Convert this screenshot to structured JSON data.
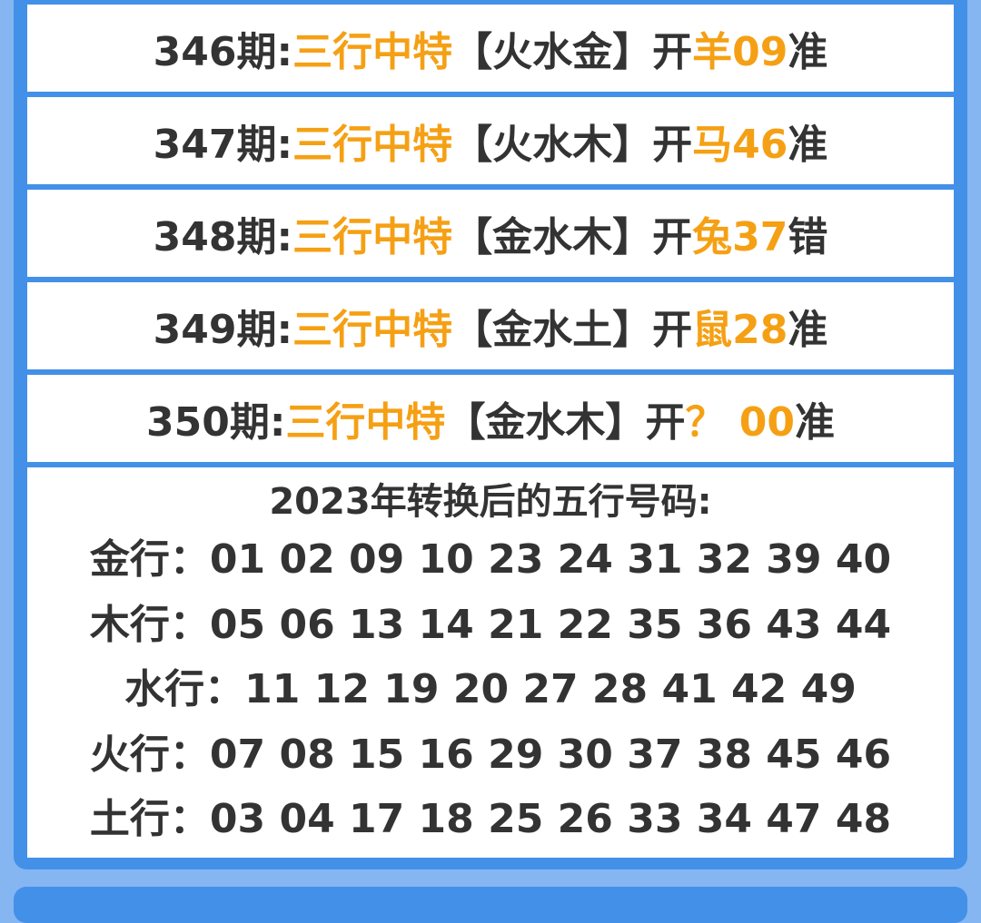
{
  "rows": [
    {
      "period": "346期:",
      "label": "三行中特",
      "elements": "【火水金】",
      "open": "开",
      "result": "羊09",
      "verdict": "准"
    },
    {
      "period": "347期:",
      "label": "三行中特",
      "elements": "【火水木】",
      "open": "开",
      "result": "马46",
      "verdict": "准"
    },
    {
      "period": "348期:",
      "label": "三行中特",
      "elements": "【金水木】",
      "open": "开",
      "result": "兔37",
      "verdict": "错"
    },
    {
      "period": "349期:",
      "label": "三行中特",
      "elements": "【金水土】",
      "open": "开",
      "result": "鼠28",
      "verdict": "准"
    },
    {
      "period": "350期:",
      "label": "三行中特",
      "elements": "【金水木】",
      "open": "开",
      "result": "？ 00",
      "verdict": "准"
    }
  ],
  "wuxing": {
    "title": "2023年转换后的五行号码:",
    "lines": [
      "金行：01 02 09 10 23 24 31 32 39 40",
      "木行：05 06 13 14 21 22 35 36 43 44",
      "水行：11 12 19 20 27 28 41 42 49",
      "火行：07 08 15 16 29 30 37 38 45 46",
      "土行：03 04 17 18 25 26 33 34 47 48"
    ]
  },
  "colors": {
    "accent": "#f5a014",
    "frame": "#4390e8",
    "background": "#85b6f2",
    "text": "#333333"
  }
}
